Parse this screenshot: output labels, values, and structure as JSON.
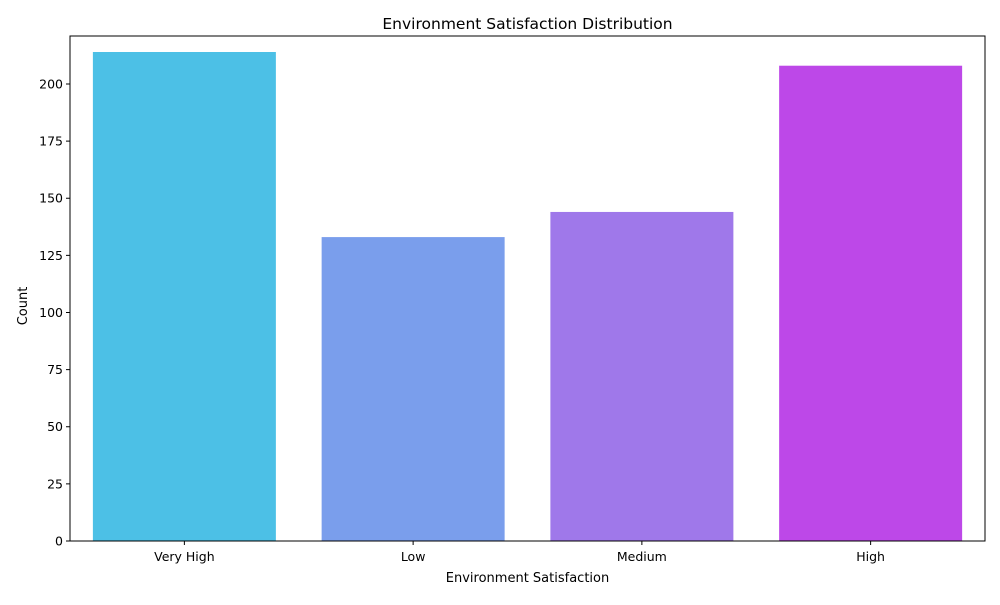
{
  "chart_data": {
    "type": "bar",
    "title": "Environment Satisfaction Distribution",
    "xlabel": "Environment Satisfaction",
    "ylabel": "Count",
    "categories": [
      "Very High",
      "Low",
      "Medium",
      "High"
    ],
    "values": [
      214,
      133,
      144,
      208
    ],
    "colors": [
      "#4cc0e6",
      "#7a9eec",
      "#9f78ea",
      "#bd48e8"
    ],
    "ylim": [
      0,
      221
    ],
    "yticks": [
      0,
      25,
      50,
      75,
      100,
      125,
      150,
      175,
      200
    ],
    "grid": false,
    "legend": "none"
  }
}
